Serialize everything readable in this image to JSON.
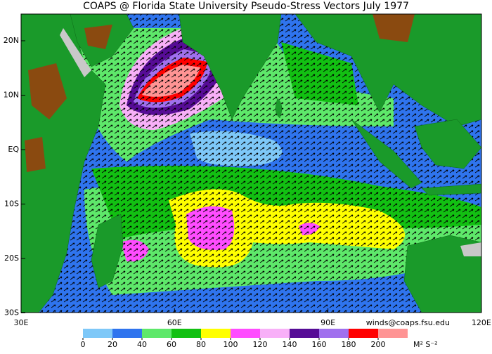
{
  "header": {
    "title": "COAPS @ Florida State University Pseudo-Stress Vectors  July 1977"
  },
  "map": {
    "lat_labels": [
      "20N",
      "10N",
      "EQ",
      "10S",
      "20S",
      "30S"
    ],
    "lon_labels": [
      "30E",
      "60E",
      "90E",
      "120E"
    ],
    "contact": "winds@coaps.fsu.edu"
  },
  "colorbar": {
    "ticks": [
      0,
      20,
      40,
      60,
      80,
      100,
      120,
      140,
      160,
      180,
      200
    ],
    "colors": [
      "#7ec8f8",
      "#2f74ee",
      "#5ee86a",
      "#12c012",
      "#ffff00",
      "#ff4cff",
      "#f8b0f8",
      "#560c96",
      "#a070ee",
      "#ff0000",
      "#ff9494"
    ],
    "units": "M² S⁻²"
  }
}
